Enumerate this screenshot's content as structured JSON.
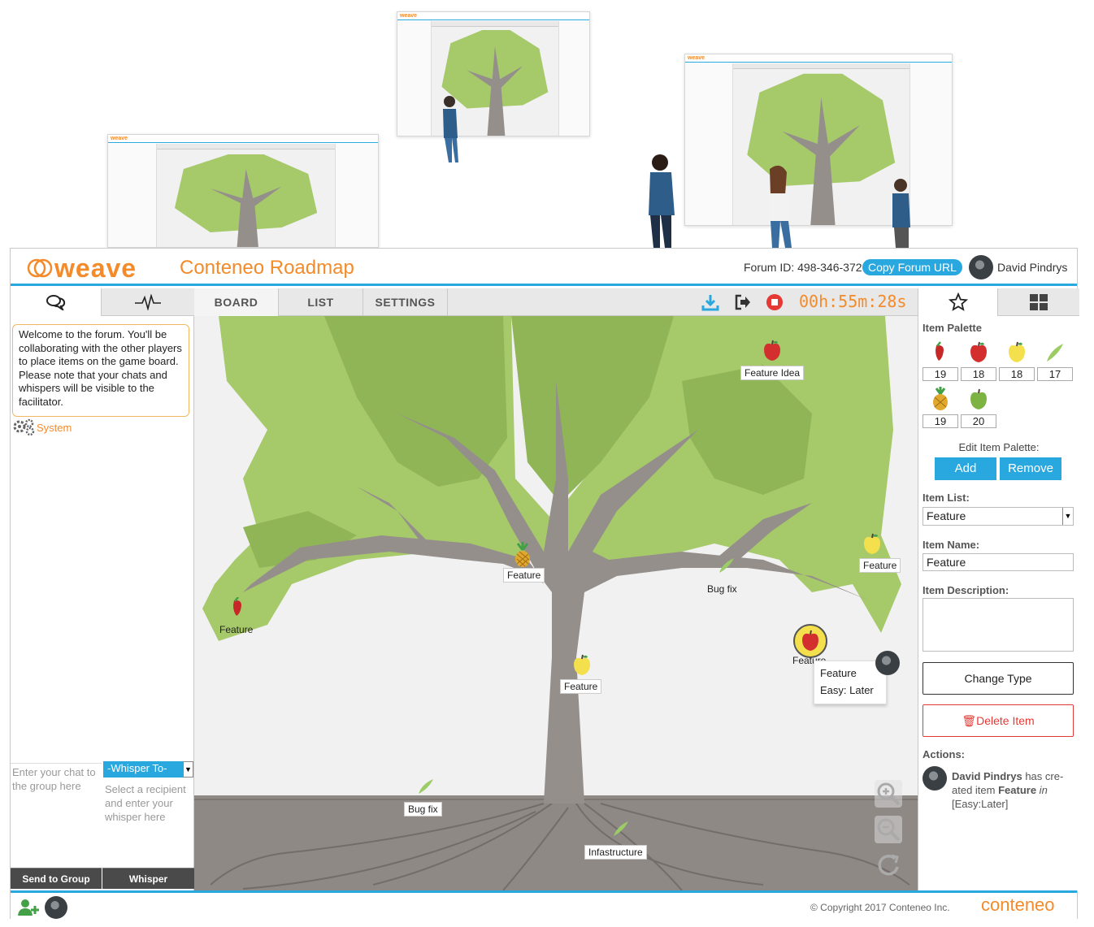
{
  "app": {
    "logo_text": "weave",
    "title": "Conteneo Roadmap",
    "forum_id": "Forum ID: 498-346-372",
    "copy_url_label": "Copy Forum URL",
    "user_name": "David Pindrys"
  },
  "left_panel": {
    "welcome_message": "Welcome to the forum. You'll be collaborating with the other players to place items on the game board. Please note that your chats and whispers will be visible to the facilitator.",
    "system_label": "System",
    "chat_placeholder": "Enter your chat to the group here",
    "whisper_select": "-Whisper To-",
    "whisper_placeholder": "Select a recipient and enter your whisper here",
    "send_button": "Send to Group",
    "whisper_button": "Whisper"
  },
  "main_tabs": {
    "board": "BOARD",
    "list": "LIST",
    "settings": "SETTINGS",
    "timer": "00h:55m:28s"
  },
  "board_items": [
    {
      "label": "Feature Idea",
      "icon": "red-apple"
    },
    {
      "label": "Feature",
      "icon": "pineapple"
    },
    {
      "label": "Feature",
      "icon": "yellow-apple"
    },
    {
      "label": "Bug fix",
      "icon": "leaf"
    },
    {
      "label": "Feature",
      "icon": "chili-pepper"
    },
    {
      "label": "Feature",
      "icon": "red-apple-selected"
    },
    {
      "label": "Feature",
      "icon": "yellow-apple"
    },
    {
      "label": "Bug fix",
      "icon": "leaf"
    },
    {
      "label": "Infastructure",
      "icon": "leaf"
    }
  ],
  "tooltip": {
    "line1": "Feature",
    "line2": "Easy: Later"
  },
  "right_panel": {
    "palette_label": "Item Palette",
    "palette": [
      {
        "icon": "chili-pepper",
        "count": "19"
      },
      {
        "icon": "red-apple",
        "count": "18"
      },
      {
        "icon": "yellow-apple",
        "count": "18"
      },
      {
        "icon": "leaf",
        "count": "17"
      },
      {
        "icon": "pineapple",
        "count": "19"
      },
      {
        "icon": "green-apple",
        "count": "20"
      }
    ],
    "edit_palette_label": "Edit Item Palette:",
    "add_button": "Add",
    "remove_button": "Remove",
    "item_list_label": "Item List:",
    "item_list_value": "Feature",
    "item_name_label": "Item Name:",
    "item_name_value": "Feature",
    "item_desc_label": "Item Description:",
    "change_type_button": "Change Type",
    "delete_button": "Delete Item",
    "actions_label": "Actions:",
    "action_user": "David Pindrys",
    "action_mid": " has cre-ated item ",
    "action_item": "Feature",
    "action_in": " in",
    "action_tail": "[Easy:Later]"
  },
  "footer": {
    "copyright": "© Copyright 2017 Conteneo Inc.",
    "logo": "conteneo"
  },
  "colors": {
    "accent_orange": "#f38b2b",
    "accent_blue": "#29a8e0",
    "tree_green_light": "#a6c96a",
    "tree_green_dark": "#8fb556",
    "trunk": "#958f8c",
    "delete_red": "#e53935"
  }
}
